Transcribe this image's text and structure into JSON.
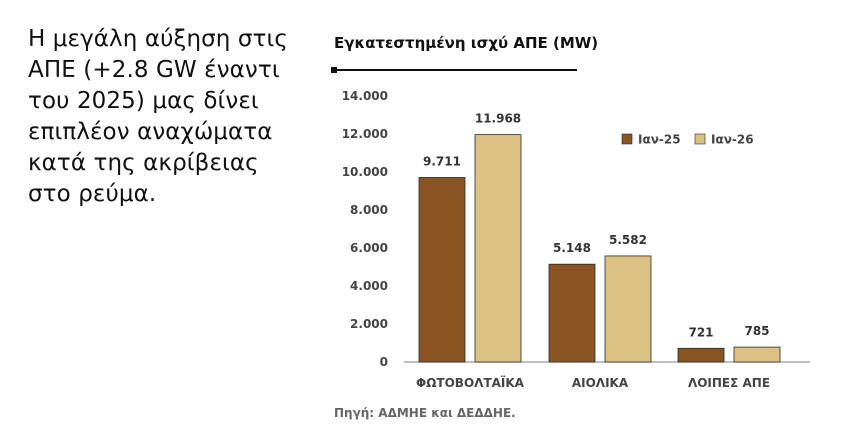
{
  "headline": "Η μεγάλη αύξηση στις\nΑΠΕ (+2.8 GW έναντι\nτου 2025) μας δίνει\nεπιπλέον αναχώματα\nκατά της ακρίβειας\nστο ρεύμα.",
  "source": "Πηγή: ΑΔΜΗΕ και ΔΕΔΔΗΕ.",
  "chart_data": {
    "type": "bar",
    "title": "Εγκατεστημένη ισχύ ΑΠΕ (MW)",
    "categories": [
      "ΦΩΤΟΒΟΛΤΑΪΚΑ",
      "ΑΙΟΛΙΚΑ",
      "ΛΟΙΠΕΣ ΑΠΕ"
    ],
    "series": [
      {
        "name": "Ιαν-25",
        "color": "#8b5523",
        "values": [
          9711,
          5148,
          721
        ],
        "labels": [
          "9.711",
          "5.148",
          "721"
        ]
      },
      {
        "name": "Ιαν-26",
        "color": "#dcc184",
        "values": [
          11968,
          5582,
          785
        ],
        "labels": [
          "11.968",
          "5.582",
          "785"
        ]
      }
    ],
    "ylim": [
      0,
      14000
    ],
    "yticks": [
      {
        "value": 0,
        "label": "0"
      },
      {
        "value": 2000,
        "label": "2.000"
      },
      {
        "value": 4000,
        "label": "4.000"
      },
      {
        "value": 6000,
        "label": "6.000"
      },
      {
        "value": 8000,
        "label": "8.000"
      },
      {
        "value": 10000,
        "label": "10.000"
      },
      {
        "value": 12000,
        "label": "12.000"
      },
      {
        "value": 14000,
        "label": "14.000"
      }
    ],
    "grid": false,
    "legend": "top-right",
    "xlabel": "",
    "ylabel": ""
  }
}
